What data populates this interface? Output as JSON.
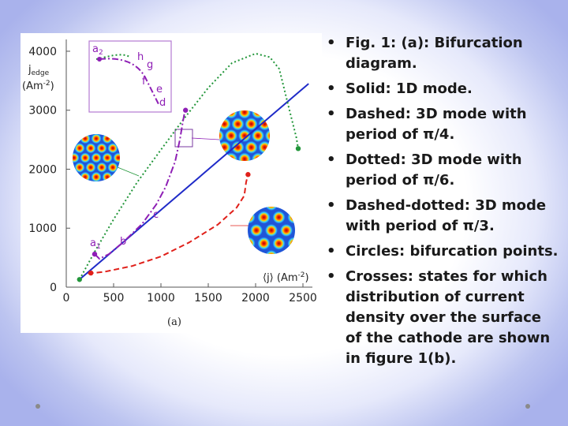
{
  "bullets": [
    "Fig. 1: (a): Bifurcation diagram.",
    "Solid: 1D mode.",
    "Dashed: 3D mode with period of  π/4.",
    "Dotted: 3D mode with period of  π/6.",
    "Dashed-dotted: 3D mode with period of π/3.",
    "Circles: bifurcation points.",
    "Crosses: states for which distribution of current density over the surface of the cathode are shown in figure 1(b)."
  ],
  "figure": {
    "panel_label": "(a)",
    "point_labels": [
      "a",
      "b",
      "c",
      "a",
      "h",
      "g",
      "f",
      "e",
      "d"
    ],
    "point_label_subs": [
      "1",
      "",
      "",
      "2",
      "",
      "",
      "",
      "",
      ""
    ]
  },
  "chart_data": {
    "type": "line",
    "xlabel_main": "⟨j⟩ (Am",
    "xlabel_sup": "-2",
    "xlabel_end": ")",
    "ylabel_main": "j",
    "ylabel_sub": "edge",
    "ylabel_unit_main": "(Am",
    "ylabel_unit_sup": "-2",
    "ylabel_unit_end": ")",
    "xlim": [
      0,
      2600
    ],
    "ylim": [
      0,
      4200
    ],
    "x_ticks": [
      "0",
      "500",
      "1000",
      "1500",
      "2000",
      "2500"
    ],
    "y_ticks": [
      "0",
      "1000",
      "2000",
      "3000",
      "4000"
    ],
    "x_tick_values": [
      0,
      500,
      1000,
      1500,
      2000,
      2500
    ],
    "y_tick_values": [
      0,
      1000,
      2000,
      3000,
      4000
    ],
    "series": [
      {
        "style": "solid",
        "color": "#1f2bc8",
        "x": [
          140,
          2560
        ],
        "y": [
          130,
          3450
        ]
      },
      {
        "style": "dashed",
        "color": "#e0201a",
        "x": [
          230,
          400,
          700,
          1000,
          1300,
          1600,
          1800,
          1880,
          1900,
          1920
        ],
        "y": [
          230,
          260,
          360,
          520,
          760,
          1060,
          1350,
          1550,
          1780,
          1910
        ]
      },
      {
        "style": "dotted",
        "color": "#22963a",
        "x": [
          140,
          300,
          500,
          750,
          1000,
          1250,
          1500,
          1750,
          2000,
          2150,
          2250,
          2350,
          2430,
          2450
        ],
        "y": [
          130,
          600,
          1150,
          1780,
          2330,
          2870,
          3380,
          3800,
          3960,
          3900,
          3700,
          3050,
          2540,
          2350
        ]
      },
      {
        "style": "dashdot",
        "color": "#8e1fb5",
        "x": [
          300,
          350,
          450,
          600,
          800,
          950,
          1050,
          1150,
          1200,
          1230,
          1250,
          1260
        ],
        "y": [
          560,
          480,
          560,
          760,
          1070,
          1400,
          1700,
          2130,
          2500,
          2790,
          2960,
          3000
        ]
      }
    ],
    "bifurcation_points": [
      {
        "x": 140,
        "y": 130,
        "color": "#22963a"
      },
      {
        "x": 260,
        "y": 240,
        "color": "#e0201a"
      },
      {
        "x": 1920,
        "y": 1910,
        "color": "#e0201a"
      },
      {
        "x": 2450,
        "y": 2350,
        "color": "#22963a"
      },
      {
        "x": 300,
        "y": 560,
        "color": "#8e1fb5"
      },
      {
        "x": 1260,
        "y": 3000,
        "color": "#8e1fb5"
      }
    ],
    "grid": false,
    "legend": "none"
  }
}
